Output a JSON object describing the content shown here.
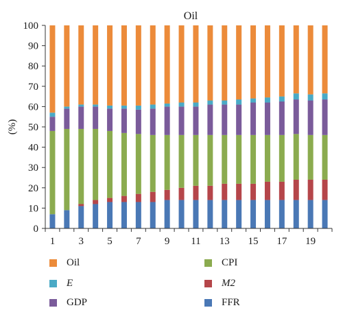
{
  "chart_data": {
    "type": "bar",
    "stacked": true,
    "title": "Oil",
    "xlabel": "",
    "ylabel": "(%)",
    "ylim": [
      0,
      100
    ],
    "yticks": [
      0,
      10,
      20,
      30,
      40,
      50,
      60,
      70,
      80,
      90,
      100
    ],
    "categories": [
      1,
      2,
      3,
      4,
      5,
      6,
      7,
      8,
      9,
      10,
      11,
      12,
      13,
      14,
      15,
      16,
      17,
      18,
      19,
      20
    ],
    "xtick_labels": [
      "1",
      "3",
      "5",
      "7",
      "9",
      "11",
      "13",
      "15",
      "17",
      "19"
    ],
    "grid": false,
    "legend_position": "bottom",
    "series": [
      {
        "name": "FFR",
        "color": "#4a78b5",
        "values": [
          7,
          9,
          11,
          12,
          13,
          13,
          13,
          13,
          14,
          14,
          14,
          14,
          14,
          14,
          14,
          14,
          14,
          14,
          14,
          14
        ]
      },
      {
        "name": "M2",
        "color": "#b5464a",
        "italic": true,
        "values": [
          0,
          0,
          1,
          2,
          2,
          3,
          4,
          5,
          5,
          6,
          7,
          7,
          8,
          8,
          8,
          9,
          9,
          10,
          10,
          10
        ]
      },
      {
        "name": "CPI",
        "color": "#8bab4f",
        "values": [
          41,
          40,
          37,
          35,
          33,
          31,
          29.5,
          28,
          27,
          26,
          25,
          25,
          24,
          24,
          24,
          23,
          23,
          22.5,
          22,
          22
        ]
      },
      {
        "name": "GDP",
        "color": "#7a5b9a",
        "values": [
          7,
          10,
          11,
          11,
          11,
          12,
          12,
          13,
          14,
          14,
          14,
          15,
          15,
          15,
          16,
          16,
          16.5,
          17,
          17,
          17.5
        ]
      },
      {
        "name": "E",
        "color": "#4aaac6",
        "italic": true,
        "values": [
          2,
          1,
          1,
          1,
          1.5,
          1.5,
          2,
          2,
          1.5,
          2,
          2,
          2,
          2,
          2.5,
          2,
          2.5,
          2.5,
          3,
          3,
          3
        ]
      },
      {
        "name": "Oil",
        "color": "#ec8b3a",
        "values": [
          43,
          40,
          39,
          39,
          39.5,
          39.5,
          39.5,
          39,
          38.5,
          38,
          38,
          37,
          37,
          36.5,
          36,
          35.5,
          35,
          33.5,
          34,
          33.5
        ]
      }
    ],
    "legend_order": [
      "Oil",
      "CPI",
      "E",
      "M2",
      "GDP",
      "FFR"
    ]
  }
}
